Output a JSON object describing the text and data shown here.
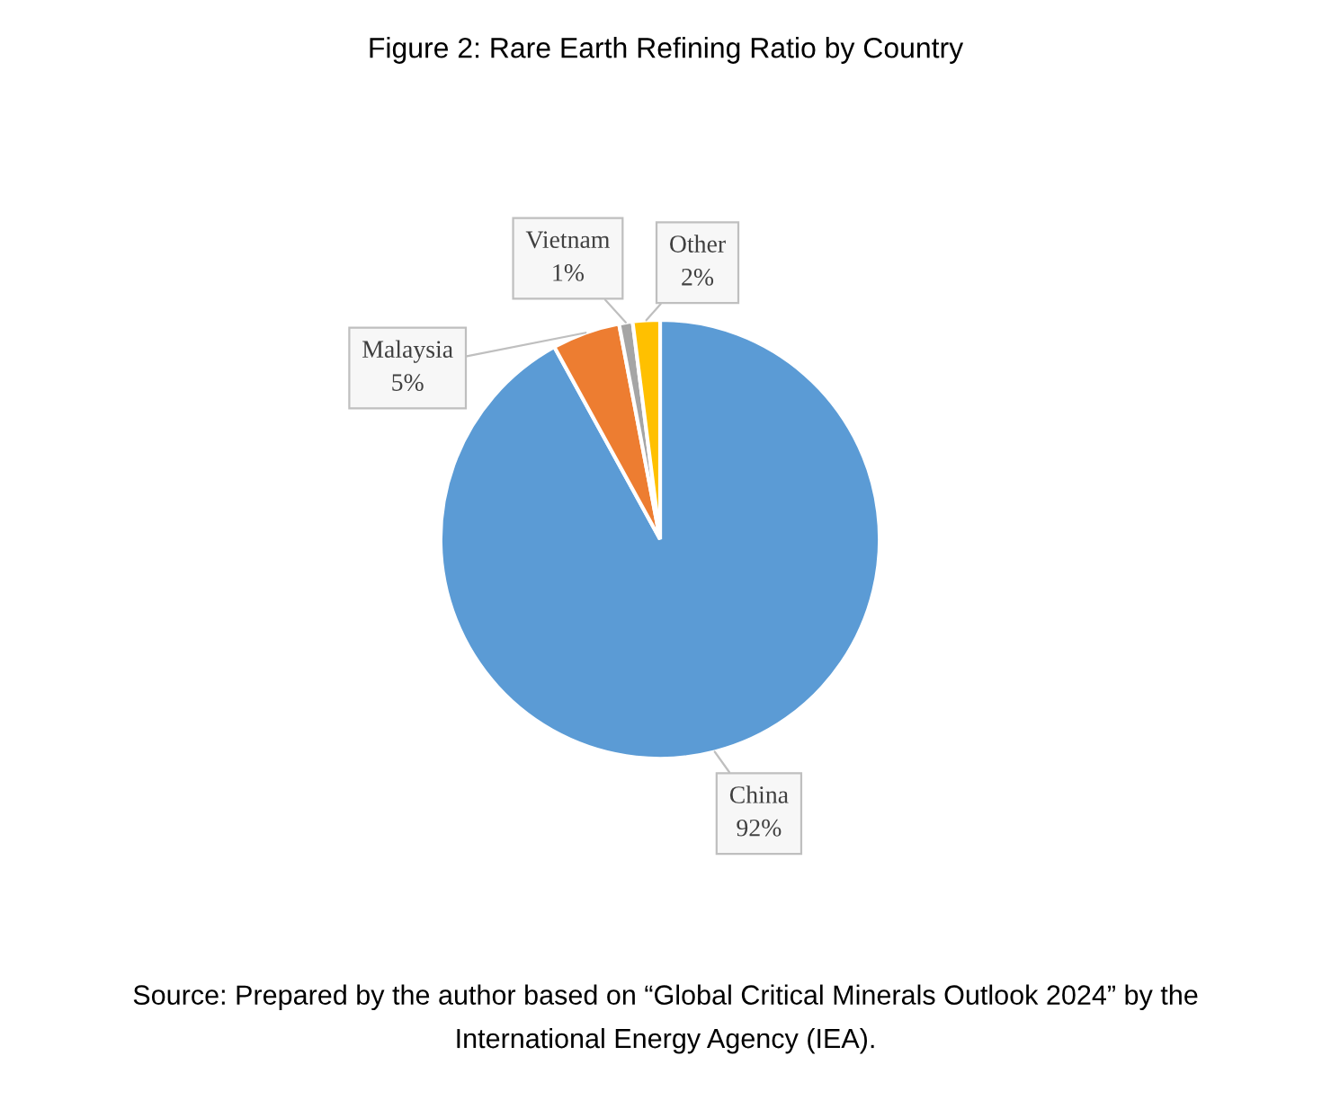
{
  "chart_data": {
    "type": "pie",
    "title": "Figure 2: Rare Earth Refining Ratio by Country",
    "categories": [
      "China",
      "Malaysia",
      "Vietnam",
      "Other"
    ],
    "values": [
      92,
      5,
      1,
      2
    ],
    "colors": [
      "#5b9bd5",
      "#ed7d31",
      "#a5a5a5",
      "#ffc000"
    ],
    "value_labels": [
      "92%",
      "5%",
      "1%",
      "2%"
    ],
    "annotations": [
      "Source: Prepared by the author based on “Global Critical Minerals Outlook 2024” by the\nInternational Energy Agency (IEA)."
    ]
  }
}
